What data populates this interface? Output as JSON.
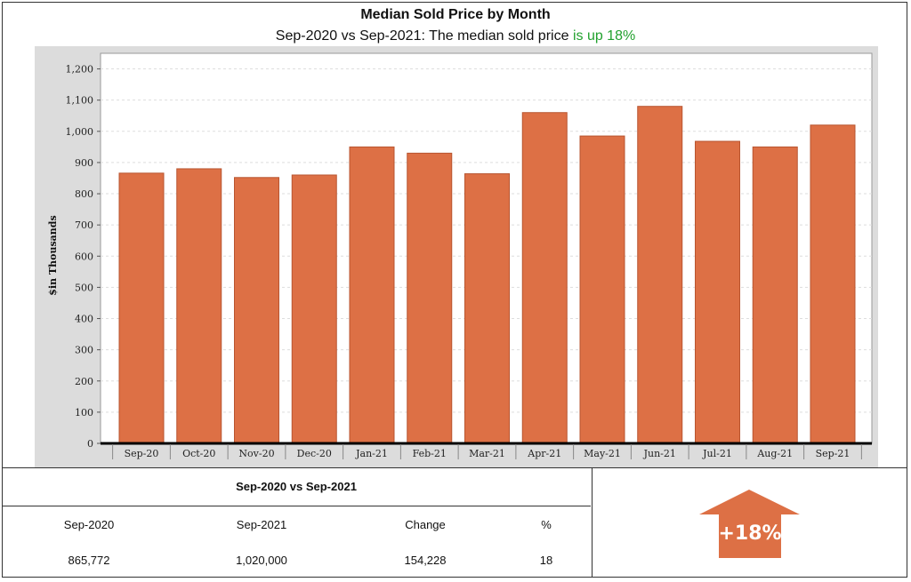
{
  "chart_data": {
    "type": "bar",
    "title": "Median Sold Price by Month",
    "subtitle_prefix": "Sep-2020 vs Sep-2021: The median sold price",
    "subtitle_highlight": "is up 18%",
    "ylabel": "$in Thousands",
    "xlabel": "",
    "ylim": [
      0,
      1200
    ],
    "yticks": [
      0,
      100,
      200,
      300,
      400,
      500,
      600,
      700,
      800,
      900,
      1000,
      1100,
      1200
    ],
    "ytick_labels": [
      "0",
      "100",
      "200",
      "300",
      "400",
      "500",
      "600",
      "700",
      "800",
      "900",
      "1,000",
      "1,100",
      "1,200"
    ],
    "categories": [
      "Sep-20",
      "Oct-20",
      "Nov-20",
      "Dec-20",
      "Jan-21",
      "Feb-21",
      "Mar-21",
      "Apr-21",
      "May-21",
      "Jun-21",
      "Jul-21",
      "Aug-21",
      "Sep-21"
    ],
    "values": [
      866,
      880,
      852,
      860,
      950,
      930,
      864,
      1060,
      985,
      1080,
      968,
      950,
      1020
    ],
    "grid": true,
    "bar_color": "#dd7045"
  },
  "comparison": {
    "heading": "Sep-2020 vs Sep-2021",
    "headers": [
      "Sep-2020",
      "Sep-2021",
      "Change",
      "%"
    ],
    "values": [
      "865,772",
      "1,020,000",
      "154,228",
      "18"
    ]
  },
  "badge": {
    "label": "+18%",
    "color": "#dd7045",
    "icon": "up-arrow-icon"
  },
  "colors": {
    "highlight": "#22a12e",
    "plot_background": "#dcdcdc"
  }
}
